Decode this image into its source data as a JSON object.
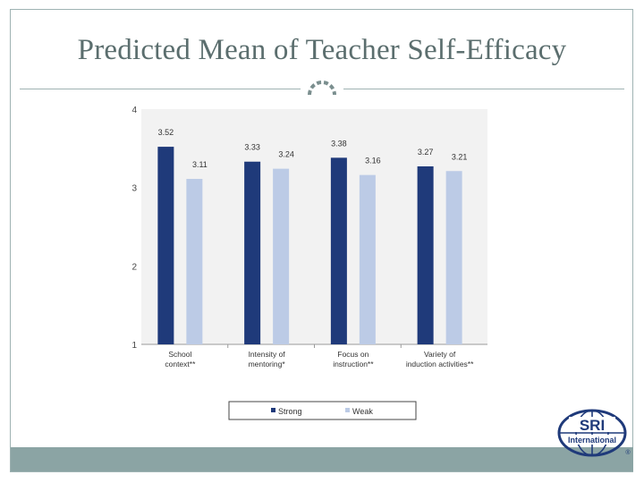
{
  "slide": {
    "title": "Predicted Mean of Teacher Self-Efficacy"
  },
  "logo": {
    "top_text": "SRI",
    "bottom_text": "International",
    "mark": "®"
  },
  "colors": {
    "strong": "#1f3a7a",
    "weak": "#bccbe6",
    "plot_bg": "#f2f2f2",
    "frame": "#9fb3b3",
    "title": "#5b6e6e",
    "bottom_bar": "#8ba4a4"
  },
  "chart_data": {
    "type": "bar",
    "title": "",
    "xlabel": "",
    "ylabel": "",
    "ylim": [
      1,
      4
    ],
    "yticks": [
      "1",
      "2",
      "3",
      "4"
    ],
    "grid": false,
    "legend_position": "bottom",
    "categories": [
      [
        "School",
        "context**"
      ],
      [
        "Intensity of",
        "mentoring*"
      ],
      [
        "Focus on",
        "instruction**"
      ],
      [
        "Variety of",
        "induction activities**"
      ]
    ],
    "series": [
      {
        "name": "Strong",
        "values": [
          3.52,
          3.33,
          3.38,
          3.27
        ],
        "labels": [
          "3.52",
          "3.33",
          "3.38",
          "3.27"
        ]
      },
      {
        "name": "Weak",
        "values": [
          3.11,
          3.24,
          3.16,
          3.21
        ],
        "labels": [
          "3.11",
          "3.24",
          "3.16",
          "3.21"
        ]
      }
    ]
  }
}
